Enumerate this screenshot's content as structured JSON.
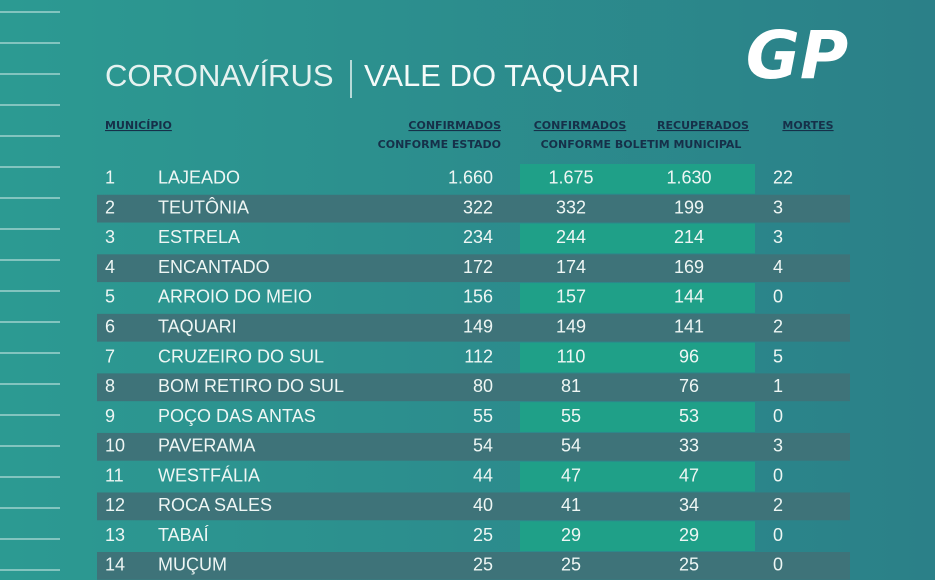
{
  "header": {
    "logo": "GP",
    "title_left": "CORONAVÍRUS",
    "title_right": "VALE DO TAQUARI"
  },
  "table": {
    "columns": {
      "municipio": "MUNICÍPIO",
      "conf_estado": "CONFIRMADOS",
      "conf_estado_sub": "CONFORME ESTADO",
      "conf_boletim": "CONFIRMADOS",
      "recuperados": "RECUPERADOS",
      "boletim_sub": "CONFORME BOLETIM MUNICIPAL",
      "mortes": "MORTES"
    },
    "rows": [
      [
        "1",
        "LAJEADO",
        "1.660",
        "1.675",
        "1.630",
        "22"
      ],
      [
        "2",
        "TEUTÔNIA",
        "322",
        "332",
        "199",
        "3"
      ],
      [
        "3",
        "ESTRELA",
        "234",
        "244",
        "214",
        "3"
      ],
      [
        "4",
        "ENCANTADO",
        "172",
        "174",
        "169",
        "4"
      ],
      [
        "5",
        "ARROIO DO MEIO",
        "156",
        "157",
        "144",
        "0"
      ],
      [
        "6",
        "TAQUARI",
        "149",
        "149",
        "141",
        "2"
      ],
      [
        "7",
        "CRUZEIRO DO SUL",
        "112",
        "110",
        "96",
        "5"
      ],
      [
        "8",
        "BOM RETIRO DO SUL",
        "80",
        "81",
        "76",
        "1"
      ],
      [
        "9",
        "POÇO DAS ANTAS",
        "55",
        "55",
        "53",
        "0"
      ],
      [
        "10",
        "PAVERAMA",
        "54",
        "54",
        "33",
        "3"
      ],
      [
        "11",
        "WESTFÁLIA",
        "44",
        "47",
        "47",
        "0"
      ],
      [
        "12",
        "ROCA SALES",
        "40",
        "41",
        "34",
        "2"
      ],
      [
        "13",
        "TABAÍ",
        "25",
        "29",
        "29",
        "0"
      ],
      [
        "14",
        "MUÇUM",
        "25",
        "25",
        "25",
        "0"
      ]
    ]
  }
}
